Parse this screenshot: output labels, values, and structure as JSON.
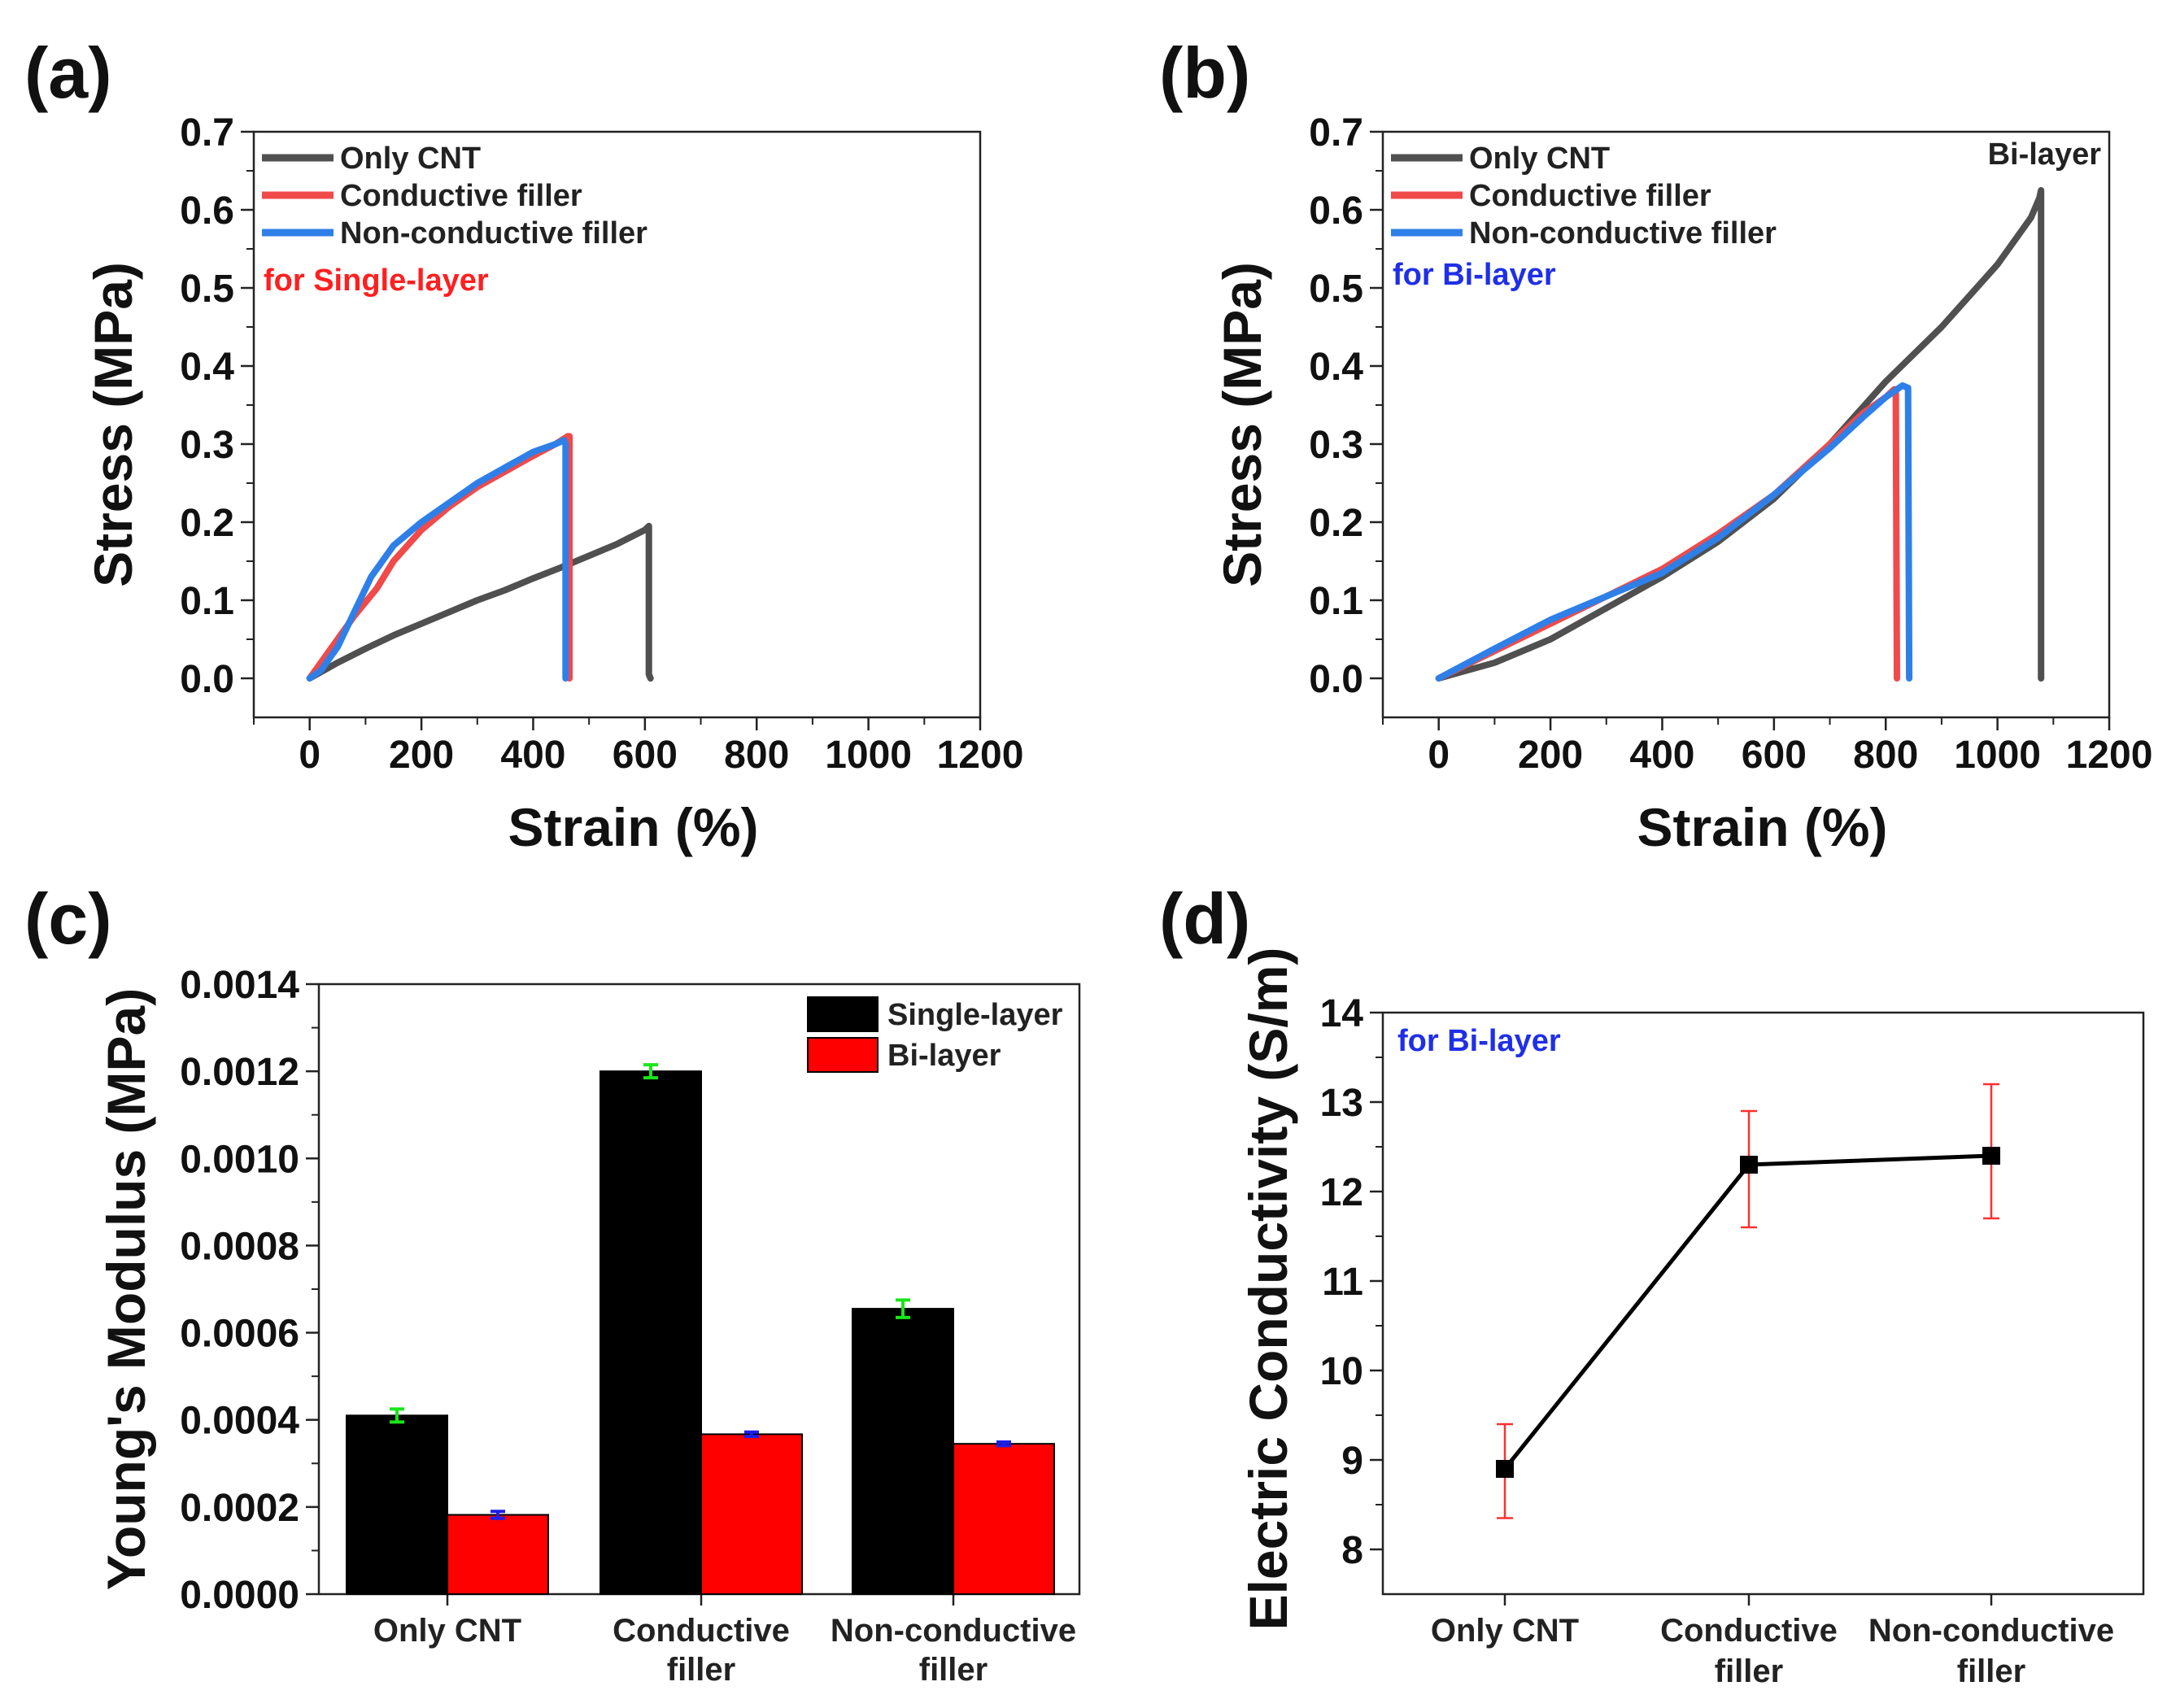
{
  "chart_data": [
    {
      "panel": "(a)",
      "type": "line",
      "xlabel": "Strain (%)",
      "ylabel": "Stress (MPa)",
      "xlim": [
        -100,
        1200
      ],
      "ylim": [
        -0.05,
        0.7
      ],
      "xticks": [
        0,
        200,
        400,
        600,
        800,
        1000,
        1200
      ],
      "yticks": [
        0.0,
        0.1,
        0.2,
        0.3,
        0.4,
        0.5,
        0.6,
        0.7
      ],
      "annotation": {
        "text": "for Single-layer",
        "color": "#ff1f1f"
      },
      "series": [
        {
          "name": "Only CNT",
          "color": "#505050",
          "x": [
            0,
            50,
            100,
            150,
            200,
            250,
            300,
            350,
            400,
            450,
            500,
            550,
            600,
            607,
            607,
            610
          ],
          "y": [
            0,
            0.02,
            0.038,
            0.055,
            0.07,
            0.085,
            0.1,
            0.113,
            0.128,
            0.142,
            0.157,
            0.172,
            0.19,
            0.195,
            0.005,
            0.0
          ]
        },
        {
          "name": "Conductive filler",
          "color": "#f04a4a",
          "x": [
            0,
            20,
            50,
            80,
            120,
            150,
            200,
            250,
            300,
            350,
            400,
            440,
            462,
            465,
            465
          ],
          "y": [
            0,
            0.02,
            0.05,
            0.08,
            0.115,
            0.15,
            0.19,
            0.22,
            0.245,
            0.265,
            0.285,
            0.3,
            0.31,
            0.31,
            0.0
          ]
        },
        {
          "name": "Non-conductive filler",
          "color": "#2f7fe8",
          "x": [
            0,
            20,
            50,
            80,
            110,
            150,
            200,
            250,
            300,
            350,
            400,
            440,
            455,
            458,
            458
          ],
          "y": [
            0,
            0.01,
            0.04,
            0.085,
            0.13,
            0.17,
            0.2,
            0.225,
            0.25,
            0.27,
            0.29,
            0.3,
            0.305,
            0.3,
            0.0
          ]
        }
      ]
    },
    {
      "panel": "(b)",
      "type": "line",
      "xlabel": "Strain (%)",
      "ylabel": "Stress (MPa)",
      "xlim": [
        -100,
        1200
      ],
      "ylim": [
        -0.05,
        0.7
      ],
      "xticks": [
        0,
        200,
        400,
        600,
        800,
        1000,
        1200
      ],
      "yticks": [
        0.0,
        0.1,
        0.2,
        0.3,
        0.4,
        0.5,
        0.6,
        0.7
      ],
      "annotation": {
        "text": "for Bi-layer",
        "color": "#1f2fe8"
      },
      "corner_label": "Bi-layer",
      "series": [
        {
          "name": "Only CNT",
          "color": "#505050",
          "x": [
            0,
            100,
            200,
            300,
            400,
            500,
            600,
            700,
            800,
            900,
            1000,
            1060,
            1075,
            1078,
            1078
          ],
          "y": [
            0,
            0.02,
            0.05,
            0.09,
            0.13,
            0.175,
            0.23,
            0.3,
            0.38,
            0.45,
            0.53,
            0.59,
            0.615,
            0.625,
            0.0
          ]
        },
        {
          "name": "Conductive filler",
          "color": "#f04a4a",
          "x": [
            0,
            100,
            200,
            300,
            400,
            500,
            600,
            700,
            760,
            800,
            815,
            818,
            820
          ],
          "y": [
            0,
            0.035,
            0.07,
            0.105,
            0.14,
            0.185,
            0.235,
            0.3,
            0.34,
            0.36,
            0.37,
            0.37,
            0.0
          ]
        },
        {
          "name": "Non-conductive filler",
          "color": "#2f7fe8",
          "x": [
            0,
            100,
            200,
            300,
            400,
            500,
            600,
            700,
            760,
            800,
            830,
            840,
            842
          ],
          "y": [
            0,
            0.038,
            0.075,
            0.105,
            0.135,
            0.18,
            0.235,
            0.295,
            0.335,
            0.36,
            0.375,
            0.372,
            0.0
          ]
        }
      ]
    },
    {
      "panel": "(c)",
      "type": "bar",
      "ylabel": "Young's Modulus (MPa)",
      "ylim": [
        0.0,
        0.0014
      ],
      "yticks": [
        "0.0000",
        "0.0002",
        "0.0004",
        "0.0006",
        "0.0008",
        "0.0010",
        "0.0012",
        "0.0014"
      ],
      "categories": [
        [
          "Only CNT"
        ],
        [
          "Conductive",
          "filler"
        ],
        [
          "Non-conductive",
          "filler"
        ]
      ],
      "series": [
        {
          "name": "Single-layer",
          "color": "#000000",
          "errcolor": "#19e619",
          "values": [
            0.00041,
            0.0012,
            0.000655
          ],
          "errors": [
            1.5e-05,
            1.5e-05,
            2e-05
          ]
        },
        {
          "name": "Bi-layer",
          "color": "#ff0000",
          "errcolor": "#1f1fe8",
          "values": [
            0.000182,
            0.000367,
            0.000345
          ],
          "errors": [
            8e-06,
            5e-06,
            4e-06
          ]
        }
      ]
    },
    {
      "panel": "(d)",
      "type": "line",
      "ylabel": "Electric Conductivity (S/m)",
      "ylim": [
        7.5,
        14
      ],
      "yticks": [
        8,
        9,
        10,
        11,
        12,
        13,
        14
      ],
      "annotation": {
        "text": "for Bi-layer",
        "color": "#1f2fe8"
      },
      "categories": [
        [
          "Only CNT"
        ],
        [
          "Conductive",
          "filler"
        ],
        [
          "Non-conductive",
          "filler"
        ]
      ],
      "values": [
        8.9,
        12.3,
        12.4
      ],
      "errors_low": [
        0.55,
        0.7,
        0.7
      ],
      "errors_high": [
        0.5,
        0.6,
        0.8
      ],
      "color": "#000000",
      "errcolor": "#ff3030"
    }
  ]
}
